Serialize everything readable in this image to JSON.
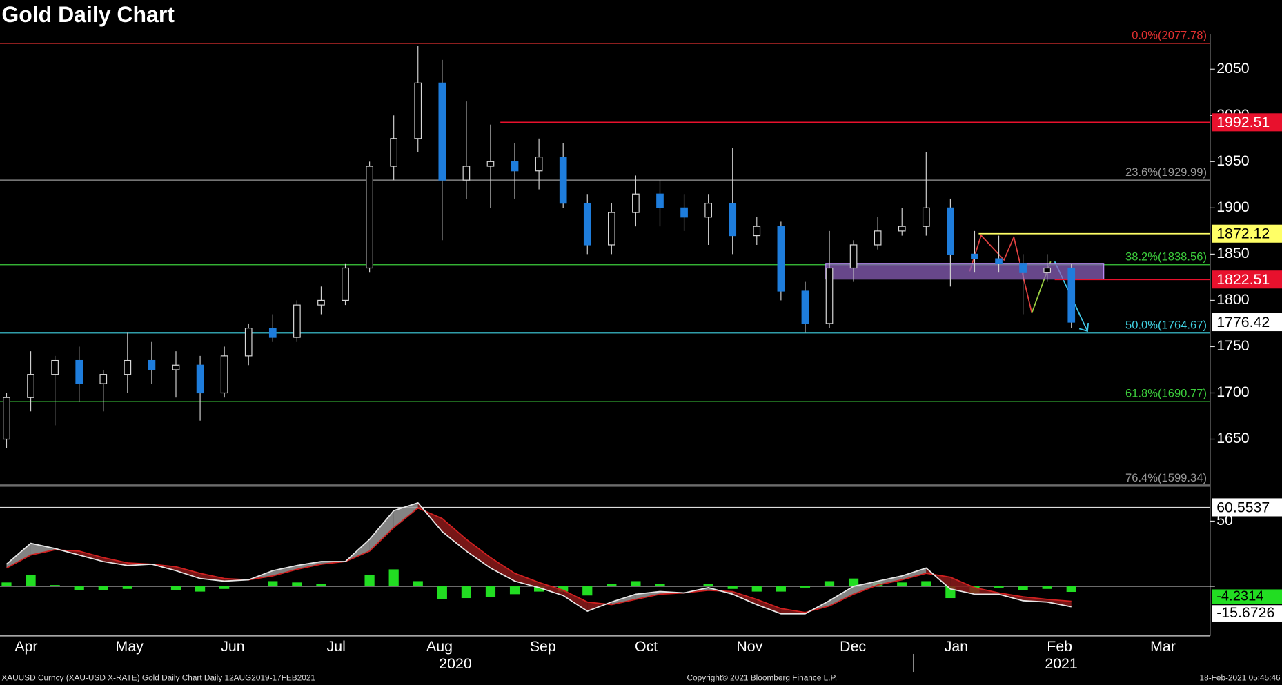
{
  "chart_data": {
    "type": "candlestick",
    "title": "Gold Daily Chart",
    "footer_left": "XAUUSD Curncy (XAU-USD X-RATE) Gold Daily Chart  Daily 12AUG2019-17FEB2021",
    "footer_center": "Copyright© 2021 Bloomberg Finance L.P.",
    "footer_right": "18-Feb-2021 05:45:46",
    "months": [
      "Apr",
      "May",
      "Jun",
      "Jul",
      "Aug",
      "Sep",
      "Oct",
      "Nov",
      "Dec",
      "Jan",
      "Feb",
      "Mar"
    ],
    "years": [
      "2020",
      "2021"
    ],
    "up_color": "#d9d9d9",
    "down_color": "#1e7ddc",
    "open": [
      1650,
      1695,
      1720,
      1735,
      1710,
      1720,
      1735,
      1725,
      1730,
      1700,
      1740,
      1770,
      1760,
      1795,
      1800,
      1835,
      1945,
      1975,
      2035,
      1930,
      1945,
      1950,
      1940,
      1955,
      1905,
      1860,
      1895,
      1915,
      1900,
      1890,
      1905,
      1870,
      1880,
      1810,
      1775,
      1835,
      1860,
      1875,
      1880,
      1900,
      1850,
      1845,
      1840,
      1830,
      1835
    ],
    "high": [
      1700,
      1745,
      1740,
      1750,
      1725,
      1765,
      1755,
      1745,
      1740,
      1750,
      1775,
      1785,
      1800,
      1815,
      1840,
      1950,
      2000,
      2075,
      2060,
      2015,
      1990,
      1970,
      1975,
      1970,
      1915,
      1905,
      1935,
      1930,
      1915,
      1915,
      1965,
      1890,
      1885,
      1820,
      1875,
      1865,
      1890,
      1900,
      1960,
      1910,
      1875,
      1870,
      1850,
      1850,
      1840
    ],
    "low": [
      1640,
      1680,
      1665,
      1690,
      1680,
      1700,
      1710,
      1695,
      1670,
      1695,
      1730,
      1755,
      1755,
      1785,
      1795,
      1830,
      1930,
      1960,
      1865,
      1910,
      1900,
      1910,
      1920,
      1900,
      1850,
      1850,
      1880,
      1880,
      1875,
      1860,
      1850,
      1860,
      1800,
      1765,
      1770,
      1820,
      1855,
      1870,
      1870,
      1815,
      1830,
      1830,
      1785,
      1820,
      1770
    ],
    "close": [
      1695,
      1720,
      1735,
      1710,
      1720,
      1735,
      1725,
      1730,
      1700,
      1740,
      1770,
      1760,
      1795,
      1800,
      1835,
      1945,
      1975,
      2035,
      1930,
      1945,
      1950,
      1940,
      1955,
      1905,
      1860,
      1895,
      1915,
      1900,
      1890,
      1905,
      1870,
      1880,
      1810,
      1775,
      1835,
      1860,
      1875,
      1880,
      1900,
      1850,
      1845,
      1840,
      1830,
      1835,
      1776.42
    ],
    "ylim": [
      1598,
      2085
    ],
    "yticks": [
      1650,
      1700,
      1750,
      1800,
      1850,
      1900,
      1950,
      2000,
      2050
    ],
    "fib_levels": [
      {
        "value": 2077.78,
        "label": "0.0%(2077.78)",
        "color": "#e03030"
      },
      {
        "value": 1929.99,
        "label": "23.6%(1929.99)",
        "color": "#9a9a9a"
      },
      {
        "value": 1838.56,
        "label": "38.2%(1838.56)",
        "color": "#3ccc3c"
      },
      {
        "value": 1764.67,
        "label": "50.0%(1764.67)",
        "color": "#40d0e0"
      },
      {
        "value": 1690.77,
        "label": "61.8%(1690.77)",
        "color": "#3ccc3c"
      },
      {
        "value": 1599.34,
        "label": "76.4%(1599.34)",
        "color": "#9a9a9a"
      }
    ],
    "levels": [
      {
        "value": 1992.51,
        "color": "#e8112d",
        "text_color": "#ffffff"
      },
      {
        "value": 1872.12,
        "color": "#ffff66",
        "text_color": "#000000"
      },
      {
        "value": 1822.51,
        "color": "#e8112d",
        "text_color": "#ffffff"
      }
    ],
    "zone": [
      1823,
      1840
    ],
    "zone_color": "#8a5fb8",
    "indicator": {
      "ylim": [
        -38,
        76
      ],
      "yticks": [
        0,
        50
      ],
      "level": 60.5537,
      "macd": [
        17,
        33,
        29,
        24,
        19,
        16,
        17,
        12,
        6,
        4,
        5,
        12,
        16,
        19,
        19,
        36,
        58,
        64,
        42,
        27,
        14,
        4,
        -1,
        -7,
        -19,
        -12,
        -6,
        -4,
        -5,
        -1,
        -6,
        -14,
        -21,
        -21,
        -11,
        0,
        4,
        8,
        14,
        -2,
        -6,
        -6,
        -11,
        -12,
        -15.6726
      ],
      "signal": [
        14,
        24,
        28,
        27,
        22,
        18,
        17,
        15,
        10,
        6,
        5,
        8,
        13,
        17,
        19,
        27,
        45,
        60,
        52,
        36,
        22,
        10,
        3,
        -3,
        -12,
        -14,
        -10,
        -6,
        -5,
        -3,
        -4,
        -10,
        -17,
        -20,
        -15,
        -6,
        1,
        5,
        10,
        7,
        -1,
        -5,
        -8,
        -10,
        -11.4
      ],
      "hist": [
        3,
        9,
        1,
        -3,
        -3,
        -2,
        0,
        -3,
        -4,
        -2,
        0,
        4,
        3,
        2,
        0,
        9,
        13,
        4,
        -10,
        -9,
        -8,
        -6,
        -4,
        -4,
        -7,
        2,
        4,
        2,
        0,
        2,
        -2,
        -4,
        -4,
        -1,
        4,
        6,
        3,
        3,
        4,
        -9,
        -5,
        -1,
        -3,
        -2,
        -4.2314
      ],
      "macd_color": "#e6e6e6",
      "signal_color": "#d02020",
      "hist_color": "#22dd22"
    }
  }
}
